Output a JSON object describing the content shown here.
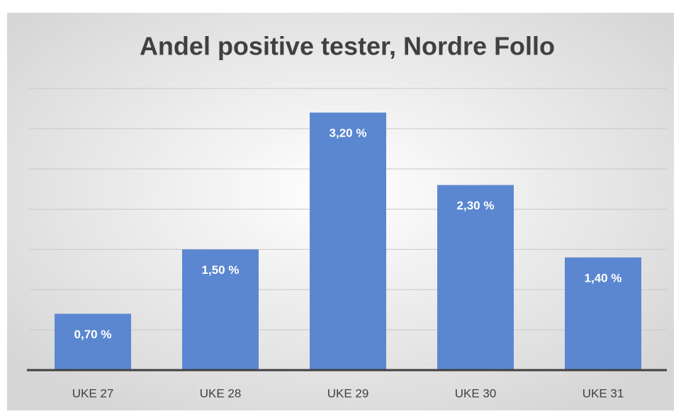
{
  "chart_data": {
    "type": "bar",
    "title": "Andel positive tester, Nordre Follo",
    "categories": [
      "UKE 27",
      "UKE 28",
      "UKE 29",
      "UKE 30",
      "UKE 31"
    ],
    "values": [
      0.7,
      1.5,
      3.2,
      2.3,
      1.4
    ],
    "value_labels": [
      "0,70 %",
      "1,50 %",
      "3,20 %",
      "2,30 %",
      "1,40 %"
    ],
    "color": "#5b87d0",
    "ylim": [
      0,
      3.5
    ],
    "yticks": [
      0,
      0.5,
      1,
      1.5,
      2,
      2.5,
      3,
      3.5
    ],
    "grid": true
  }
}
